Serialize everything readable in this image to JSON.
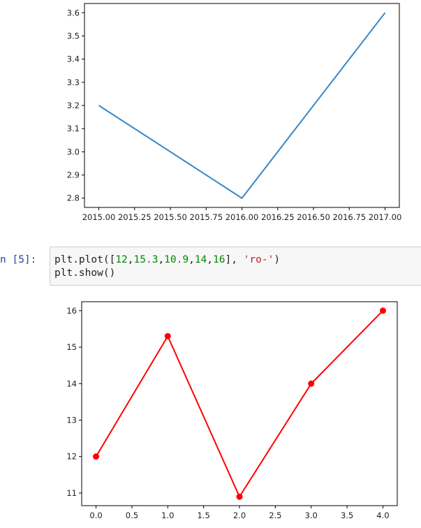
{
  "cell": {
    "prompt": "n [5]:",
    "code_line1": {
      "prefix": "plt.plot([",
      "n1": "12",
      "n2": "15.3",
      "n3": "10.9",
      "n4": "14",
      "n5": "16",
      "sep": ",",
      "mid": "], ",
      "str": "'ro-'",
      "suffix": ")"
    },
    "code_line2": "plt.show()"
  },
  "chart_data": [
    {
      "type": "line",
      "x": [
        2015.0,
        2016.0,
        2017.0
      ],
      "y": [
        3.2,
        2.8,
        3.6
      ],
      "xlim": [
        2014.9,
        2017.1
      ],
      "ylim": [
        2.76,
        3.64
      ],
      "xticks": [
        "2015.00",
        "2015.25",
        "2015.50",
        "2015.75",
        "2016.00",
        "2016.25",
        "2016.50",
        "2016.75",
        "2017.00"
      ],
      "yticks": [
        "2.8",
        "2.9",
        "3.0",
        "3.1",
        "3.2",
        "3.3",
        "3.4",
        "3.5",
        "3.6"
      ],
      "color": "#3a87c4",
      "title": "",
      "xlabel": "",
      "ylabel": ""
    },
    {
      "type": "line",
      "x": [
        0,
        1,
        2,
        3,
        4
      ],
      "y": [
        12,
        15.3,
        10.9,
        14,
        16
      ],
      "xlim": [
        -0.2,
        4.2
      ],
      "ylim": [
        10.655,
        16.245
      ],
      "xticks": [
        "0.0",
        "0.5",
        "1.0",
        "1.5",
        "2.0",
        "2.5",
        "3.0",
        "3.5",
        "4.0"
      ],
      "yticks": [
        "11",
        "12",
        "13",
        "14",
        "15",
        "16"
      ],
      "color": "#ff0000",
      "marker": "circle",
      "title": "",
      "xlabel": "",
      "ylabel": ""
    }
  ]
}
